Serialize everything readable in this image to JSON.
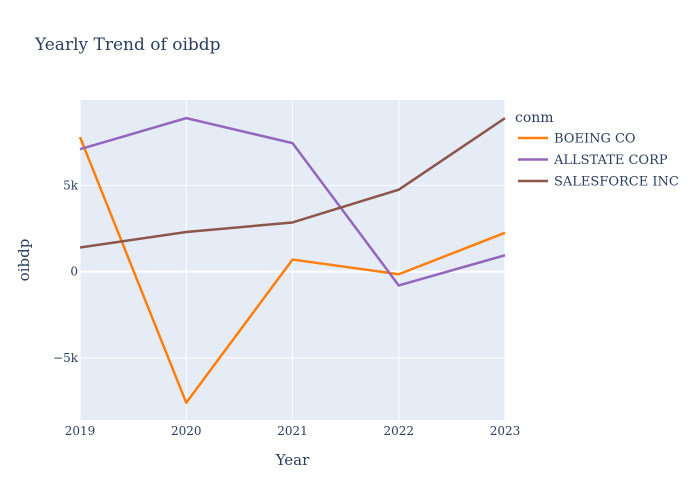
{
  "chart_data": {
    "type": "line",
    "title": "Yearly Trend of oibdp",
    "xlabel": "Year",
    "ylabel": "oibdp",
    "x": [
      2019,
      2020,
      2021,
      2022,
      2023
    ],
    "x_tick_labels": [
      "2019",
      "2020",
      "2021",
      "2022",
      "2023"
    ],
    "xlim": [
      2019,
      2023
    ],
    "ylim": [
      -8600,
      9950
    ],
    "y_ticks": [
      -5000,
      0,
      5000
    ],
    "y_tick_labels": [
      "−5k",
      "0",
      "5k"
    ],
    "grid": true,
    "plot_bgcolor": "#E5ECF6",
    "legend": {
      "title": "conm",
      "placement": "right"
    },
    "series": [
      {
        "name": "BOEING CO",
        "color": "#FF7F0E",
        "values": [
          7800,
          -7600,
          700,
          -150,
          2250
        ]
      },
      {
        "name": "ALLSTATE CORP",
        "color": "#9467BD",
        "values": [
          7100,
          8900,
          7450,
          -800,
          950
        ]
      },
      {
        "name": "SALESFORCE INC",
        "color": "#8C564B",
        "values": [
          1400,
          2300,
          2850,
          4750,
          8900
        ]
      }
    ]
  }
}
